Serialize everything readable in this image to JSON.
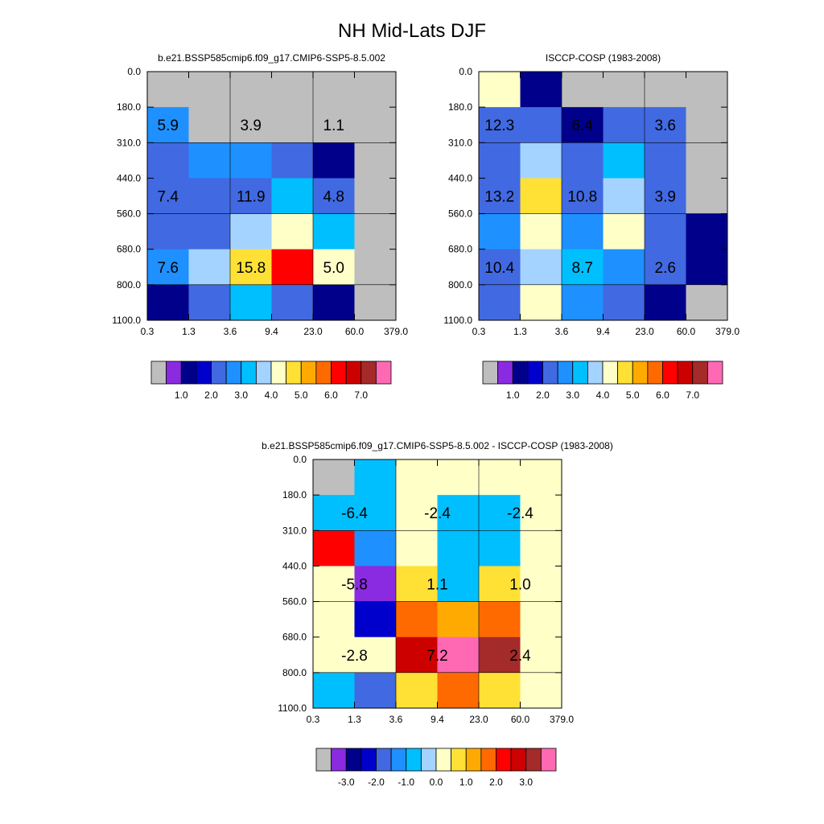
{
  "figure": {
    "title": "NH Mid-Lats DJF"
  },
  "chart_data": [
    {
      "type": "heatmap",
      "title": "b.e21.BSSP585cmip6.f09_g17.CMIP6-SSP5-8.5.002",
      "xlabel": "",
      "ylabel": "",
      "x_ticks": [
        "0.3",
        "1.3",
        "3.6",
        "9.4",
        "23.0",
        "60.0",
        "379.0"
      ],
      "y_ticks": [
        "0.0",
        "180.0",
        "310.0",
        "440.0",
        "560.0",
        "680.0",
        "800.0",
        "1100.0"
      ],
      "grid": true,
      "cells": [
        [
          -1,
          -1,
          -1,
          -1,
          -1,
          -1
        ],
        [
          2.25,
          -1,
          -1,
          -1,
          -1,
          -1
        ],
        [
          1.75,
          2.25,
          2.25,
          2.0,
          1.0,
          -1
        ],
        [
          2.0,
          2.0,
          2.0,
          3.0,
          2.0,
          -1
        ],
        [
          2.0,
          1.75,
          3.5,
          4.0,
          3.0,
          -1
        ],
        [
          2.25,
          3.5,
          4.5,
          5.75,
          3.75,
          -1
        ],
        [
          1.0,
          1.75,
          3.0,
          1.75,
          1.0,
          -1
        ]
      ],
      "annotations": [
        {
          "col": 0.5,
          "row": 1.5,
          "text": "5.9"
        },
        {
          "col": 2.5,
          "row": 1.5,
          "text": "3.9"
        },
        {
          "col": 4.5,
          "row": 1.5,
          "text": "1.1"
        },
        {
          "col": 0.5,
          "row": 3.5,
          "text": "7.4"
        },
        {
          "col": 2.5,
          "row": 3.5,
          "text": "11.9"
        },
        {
          "col": 4.5,
          "row": 3.5,
          "text": "4.8"
        },
        {
          "col": 0.5,
          "row": 5.5,
          "text": "7.6"
        },
        {
          "col": 2.5,
          "row": 5.5,
          "text": "15.8"
        },
        {
          "col": 4.5,
          "row": 5.5,
          "text": "5.0"
        }
      ],
      "colorbar": {
        "colors": [
          "#bebebe",
          "#8a2be2",
          "#00008b",
          "#0000cd",
          "#4169e1",
          "#1e90ff",
          "#00bfff",
          "#a4d3ff",
          "#ffffc8",
          "#ffe135",
          "#ffaa00",
          "#ff6a00",
          "#ff0000",
          "#cd0000",
          "#a52a2a",
          "#ff69b4"
        ],
        "labels": [
          {
            "pos": 2,
            "text": "1.0"
          },
          {
            "pos": 4,
            "text": "2.0"
          },
          {
            "pos": 6,
            "text": "3.0"
          },
          {
            "pos": 8,
            "text": "4.0"
          },
          {
            "pos": 10,
            "text": "5.0"
          },
          {
            "pos": 12,
            "text": "6.0"
          },
          {
            "pos": 14,
            "text": "7.0"
          }
        ]
      }
    },
    {
      "type": "heatmap",
      "title": "ISCCP-COSP (1983-2008)",
      "xlabel": "",
      "ylabel": "",
      "x_ticks": [
        "0.3",
        "1.3",
        "3.6",
        "9.4",
        "23.0",
        "60.0",
        "379.0"
      ],
      "y_ticks": [
        "0.0",
        "180.0",
        "310.0",
        "440.0",
        "560.0",
        "680.0",
        "800.0",
        "1100.0"
      ],
      "grid": true,
      "cells": [
        [
          4.0,
          1.0,
          -1,
          -1,
          -1,
          -1
        ],
        [
          2.0,
          2.0,
          1.0,
          1.75,
          2.0,
          -1
        ],
        [
          1.75,
          3.25,
          2.0,
          2.75,
          2.0,
          -1
        ],
        [
          2.0,
          4.5,
          2.0,
          3.25,
          1.75,
          -1
        ],
        [
          2.5,
          4.0,
          2.5,
          3.75,
          2.0,
          1.0
        ],
        [
          2.0,
          3.25,
          2.75,
          2.5,
          1.75,
          1.0
        ],
        [
          2.0,
          3.75,
          2.5,
          1.75,
          1.0,
          -1
        ]
      ],
      "annotations": [
        {
          "col": 0.5,
          "row": 1.5,
          "text": "12.3"
        },
        {
          "col": 2.5,
          "row": 1.5,
          "text": "6.4"
        },
        {
          "col": 4.5,
          "row": 1.5,
          "text": "3.6"
        },
        {
          "col": 0.5,
          "row": 3.5,
          "text": "13.2"
        },
        {
          "col": 2.5,
          "row": 3.5,
          "text": "10.8"
        },
        {
          "col": 4.5,
          "row": 3.5,
          "text": "3.9"
        },
        {
          "col": 0.5,
          "row": 5.5,
          "text": "10.4"
        },
        {
          "col": 2.5,
          "row": 5.5,
          "text": "8.7"
        },
        {
          "col": 4.5,
          "row": 5.5,
          "text": "2.6"
        }
      ],
      "colorbar": {
        "colors": [
          "#bebebe",
          "#8a2be2",
          "#00008b",
          "#0000cd",
          "#4169e1",
          "#1e90ff",
          "#00bfff",
          "#a4d3ff",
          "#ffffc8",
          "#ffe135",
          "#ffaa00",
          "#ff6a00",
          "#ff0000",
          "#cd0000",
          "#a52a2a",
          "#ff69b4"
        ],
        "labels": [
          {
            "pos": 2,
            "text": "1.0"
          },
          {
            "pos": 4,
            "text": "2.0"
          },
          {
            "pos": 6,
            "text": "3.0"
          },
          {
            "pos": 8,
            "text": "4.0"
          },
          {
            "pos": 10,
            "text": "5.0"
          },
          {
            "pos": 12,
            "text": "6.0"
          },
          {
            "pos": 14,
            "text": "7.0"
          }
        ]
      }
    },
    {
      "type": "heatmap",
      "title": "b.e21.BSSP585cmip6.f09_g17.CMIP6-SSP5-8.5.002 - ISCCP-COSP (1983-2008)",
      "xlabel": "",
      "ylabel": "",
      "x_ticks": [
        "0.3",
        "1.3",
        "3.6",
        "9.4",
        "23.0",
        "60.0",
        "379.0"
      ],
      "y_ticks": [
        "0.0",
        "180.0",
        "310.0",
        "440.0",
        "560.0",
        "680.0",
        "800.0",
        "1100.0"
      ],
      "grid": true,
      "cells": [
        [
          -9,
          -1.0,
          0.0,
          0.0,
          0.0,
          0.0
        ],
        [
          -1.0,
          -1.0,
          0.0,
          -1.0,
          -1.0,
          0.0
        ],
        [
          1.75,
          -1.5,
          0.0,
          -1.0,
          -1.0,
          0.0
        ],
        [
          0.0,
          -3.5,
          0.25,
          -1.0,
          0.25,
          0.0
        ],
        [
          0.0,
          -2.75,
          1.25,
          0.75,
          1.25,
          0.0
        ],
        [
          0.0,
          0.0,
          2.25,
          3.75,
          2.75,
          0.0
        ],
        [
          -1.0,
          -2.0,
          0.25,
          1.25,
          0.25,
          0.0
        ]
      ],
      "annotations": [
        {
          "col": 1.0,
          "row": 1.5,
          "text": "-6.4"
        },
        {
          "col": 3.0,
          "row": 1.5,
          "text": "-2.4"
        },
        {
          "col": 5.0,
          "row": 1.5,
          "text": "-2.4"
        },
        {
          "col": 1.0,
          "row": 3.5,
          "text": "-5.8"
        },
        {
          "col": 3.0,
          "row": 3.5,
          "text": "1.1"
        },
        {
          "col": 5.0,
          "row": 3.5,
          "text": "1.0"
        },
        {
          "col": 1.0,
          "row": 5.5,
          "text": "-2.8"
        },
        {
          "col": 3.0,
          "row": 5.5,
          "text": "7.2"
        },
        {
          "col": 5.0,
          "row": 5.5,
          "text": "2.4"
        }
      ],
      "colorbar": {
        "colors": [
          "#bebebe",
          "#8a2be2",
          "#00008b",
          "#0000cd",
          "#4169e1",
          "#1e90ff",
          "#00bfff",
          "#a4d3ff",
          "#ffffc8",
          "#ffe135",
          "#ffaa00",
          "#ff6a00",
          "#ff0000",
          "#cd0000",
          "#a52a2a",
          "#ff69b4"
        ],
        "labels": [
          {
            "pos": 2,
            "text": "-3.0"
          },
          {
            "pos": 4,
            "text": "-2.0"
          },
          {
            "pos": 6,
            "text": "-1.0"
          },
          {
            "pos": 8,
            "text": "0.0"
          },
          {
            "pos": 10,
            "text": "1.0"
          },
          {
            "pos": 12,
            "text": "2.0"
          },
          {
            "pos": 14,
            "text": "3.0"
          }
        ]
      }
    }
  ]
}
